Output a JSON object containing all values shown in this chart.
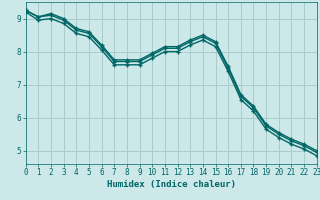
{
  "xlabel": "Humidex (Indice chaleur)",
  "ylabel": "",
  "bg_color": "#cce8e8",
  "grid_color": "#aacccc",
  "line_color": "#006666",
  "x_values": [
    0,
    1,
    2,
    3,
    4,
    5,
    6,
    7,
    8,
    9,
    10,
    11,
    12,
    13,
    14,
    15,
    16,
    17,
    18,
    19,
    20,
    21,
    22,
    23
  ],
  "line1_y": [
    9.25,
    9.05,
    9.15,
    9.0,
    8.7,
    8.6,
    8.2,
    7.75,
    7.75,
    7.75,
    7.95,
    8.15,
    8.15,
    8.35,
    8.5,
    8.3,
    7.55,
    6.7,
    6.35,
    5.8,
    5.55,
    5.35,
    5.2,
    5.0
  ],
  "line2_y": [
    9.25,
    9.05,
    9.1,
    8.95,
    8.65,
    8.55,
    8.15,
    7.7,
    7.7,
    7.7,
    7.9,
    8.1,
    8.1,
    8.3,
    8.45,
    8.25,
    7.5,
    6.65,
    6.3,
    5.75,
    5.5,
    5.3,
    5.15,
    4.95
  ],
  "line3_y": [
    9.2,
    8.95,
    9.0,
    8.85,
    8.55,
    8.45,
    8.05,
    7.6,
    7.6,
    7.6,
    7.8,
    8.0,
    8.0,
    8.2,
    8.35,
    8.15,
    7.4,
    6.55,
    6.2,
    5.65,
    5.4,
    5.2,
    5.05,
    4.85
  ],
  "xlim": [
    0,
    23
  ],
  "ylim": [
    4.6,
    9.5
  ],
  "yticks": [
    5,
    6,
    7,
    8,
    9
  ],
  "xticks": [
    0,
    1,
    2,
    3,
    4,
    5,
    6,
    7,
    8,
    9,
    10,
    11,
    12,
    13,
    14,
    15,
    16,
    17,
    18,
    19,
    20,
    21,
    22,
    23
  ]
}
